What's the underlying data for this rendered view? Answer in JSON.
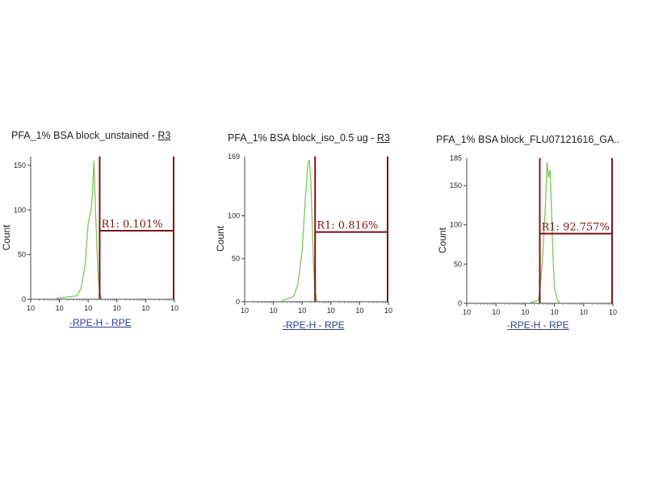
{
  "chart_data": [
    {
      "type": "histogram",
      "title": "PFA_1% BSA block_unstained",
      "title_sep": " - ",
      "title_gate": "R3",
      "ylabel": "Count",
      "xlabel": "-RPE-H - RPE",
      "x_scale": "log",
      "x_tick_labels": [
        "10",
        "10",
        "10",
        "10",
        "10",
        "10"
      ],
      "y_ticks": [
        0,
        50,
        100,
        150
      ],
      "ylim": [
        0,
        160
      ],
      "series_color": "#7cc75a",
      "region": {
        "name": "R1",
        "label": "R1: 0.101%",
        "percent": 0.101,
        "bounds_decades": [
          2.4,
          5.0
        ]
      },
      "histogram_decades": [
        0.9,
        1.6,
        1.75,
        1.9,
        2.0,
        2.1,
        2.15,
        2.2,
        2.25,
        2.3,
        2.35,
        2.4,
        2.45,
        2.5
      ],
      "histogram_counts": [
        1,
        4,
        12,
        40,
        85,
        100,
        118,
        155,
        105,
        60,
        25,
        8,
        2,
        0
      ]
    },
    {
      "type": "histogram",
      "title": "PFA_1% BSA block_iso_0.5 ug",
      "title_sep": " - ",
      "title_gate": "R3",
      "ylabel": "Count",
      "xlabel": "-RPE-H - RPE",
      "x_scale": "log",
      "x_tick_labels": [
        "10",
        "10",
        "10",
        "10",
        "10",
        "10"
      ],
      "y_ticks": [
        0,
        50,
        100
      ],
      "ymax_label": "169",
      "ylim": [
        0,
        169
      ],
      "series_color": "#7cc75a",
      "region": {
        "name": "R1",
        "label": "R1: 0.816%",
        "percent": 0.816,
        "bounds_decades": [
          2.45,
          5.0
        ]
      },
      "histogram_decades": [
        1.3,
        1.7,
        1.85,
        2.0,
        2.1,
        2.2,
        2.25,
        2.3,
        2.35,
        2.4,
        2.45,
        2.5,
        2.55
      ],
      "histogram_counts": [
        1,
        6,
        20,
        60,
        115,
        160,
        165,
        140,
        90,
        40,
        12,
        3,
        0
      ]
    },
    {
      "type": "histogram",
      "title": "PFA_1% BSA block_FLU07121616_GA..",
      "title_sep": "",
      "title_gate": "",
      "ylabel": "Count",
      "xlabel": "-RPE-H - RPE",
      "x_scale": "log",
      "x_tick_labels": [
        "10",
        "10",
        "10",
        "10",
        "10",
        "10"
      ],
      "y_ticks": [
        0,
        50,
        100,
        150
      ],
      "ymax_label": "185",
      "ylim": [
        0,
        185
      ],
      "series_color": "#7cc75a",
      "region": {
        "name": "R1",
        "label": "R1: 92.757%",
        "percent": 92.757,
        "bounds_decades": [
          2.5,
          5.0
        ]
      },
      "histogram_decades": [
        2.2,
        2.45,
        2.5,
        2.6,
        2.7,
        2.75,
        2.8,
        2.85,
        2.9,
        2.95,
        3.0,
        3.1,
        3.2
      ],
      "histogram_counts": [
        1,
        4,
        15,
        60,
        130,
        180,
        160,
        170,
        120,
        60,
        20,
        4,
        0
      ]
    }
  ]
}
